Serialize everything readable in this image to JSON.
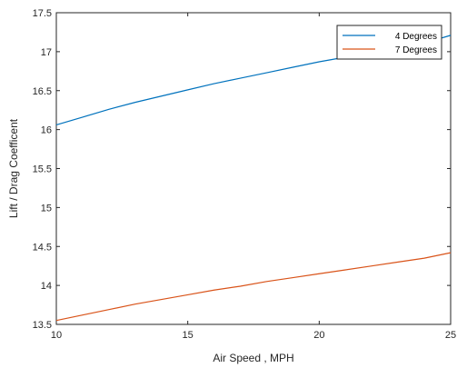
{
  "chart_data": {
    "type": "line",
    "title": "",
    "xlabel": "Air Speed , MPH",
    "ylabel": "Lift / Drag Coefficent",
    "xlim": [
      10,
      25
    ],
    "ylim": [
      13.5,
      17.5
    ],
    "x_ticks": [
      10,
      15,
      20,
      25
    ],
    "x_tick_labels": [
      "10",
      "15",
      "20",
      "25"
    ],
    "y_ticks": [
      13.5,
      14,
      14.5,
      15,
      15.5,
      16,
      16.5,
      17,
      17.5
    ],
    "y_tick_labels": [
      "13.5",
      "14",
      "14.5",
      "15",
      "15.5",
      "16",
      "16.5",
      "17",
      "17.5"
    ],
    "grid": false,
    "legend_position": "top-right",
    "series": [
      {
        "name": "4 Degrees",
        "color": "#0072bd",
        "x": [
          10,
          11,
          12,
          13,
          14,
          15,
          16,
          17,
          18,
          19,
          20,
          21,
          22,
          23,
          24,
          25
        ],
        "y": [
          16.06,
          16.16,
          16.26,
          16.35,
          16.43,
          16.51,
          16.59,
          16.66,
          16.73,
          16.8,
          16.87,
          16.93,
          16.99,
          17.05,
          17.11,
          17.21
        ]
      },
      {
        "name": "7 Degrees",
        "color": "#d95319",
        "x": [
          10,
          11,
          12,
          13,
          14,
          15,
          16,
          17,
          18,
          19,
          20,
          21,
          22,
          23,
          24,
          25
        ],
        "y": [
          13.55,
          13.62,
          13.69,
          13.76,
          13.82,
          13.88,
          13.94,
          13.99,
          14.05,
          14.1,
          14.15,
          14.2,
          14.25,
          14.3,
          14.35,
          14.42
        ]
      }
    ]
  }
}
